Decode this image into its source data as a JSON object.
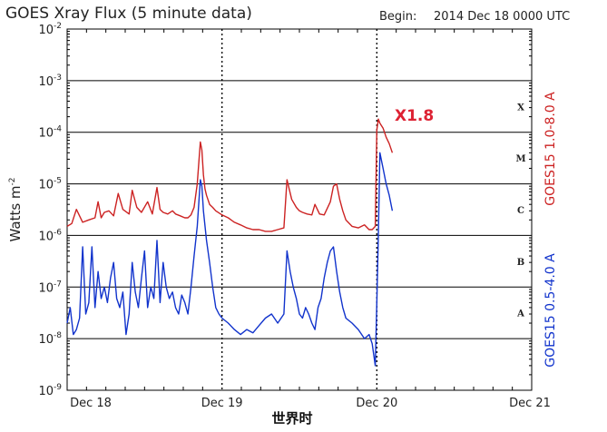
{
  "chart_data": {
    "type": "line",
    "title": "GOES Xray Flux (5 minute data)",
    "begin_label": "Begin:",
    "begin_value": "2014 Dec 18 0000 UTC",
    "ylabel": "Watts m",
    "ylabel_exp": "-2",
    "xlabel": "世界时",
    "y_scale": "log",
    "ylim": [
      1e-09,
      0.01
    ],
    "xlim": [
      0,
      3
    ],
    "y_ticks": [
      {
        "value": 0.01,
        "base": "10",
        "exp": "-2"
      },
      {
        "value": 0.001,
        "base": "10",
        "exp": "-3"
      },
      {
        "value": 0.0001,
        "base": "10",
        "exp": "-4"
      },
      {
        "value": 1e-05,
        "base": "10",
        "exp": "-5"
      },
      {
        "value": 1e-06,
        "base": "10",
        "exp": "-6"
      },
      {
        "value": 1e-07,
        "base": "10",
        "exp": "-7"
      },
      {
        "value": 1e-08,
        "base": "10",
        "exp": "-8"
      },
      {
        "value": 1e-09,
        "base": "10",
        "exp": "-9"
      }
    ],
    "x_ticks": [
      {
        "value": 0,
        "label": "Dec 18"
      },
      {
        "value": 1,
        "label": "Dec 19"
      },
      {
        "value": 2,
        "label": "Dec 20"
      },
      {
        "value": 3,
        "label": "Dec 21"
      }
    ],
    "flare_classes": [
      {
        "label": "X",
        "low": 0.0001,
        "high": 0.001
      },
      {
        "label": "M",
        "low": 1e-05,
        "high": 0.0001
      },
      {
        "label": "C",
        "low": 1e-06,
        "high": 1e-05
      },
      {
        "label": "B",
        "low": 1e-07,
        "high": 1e-06
      },
      {
        "label": "A",
        "low": 1e-08,
        "high": 1e-07
      }
    ],
    "grid": true,
    "colors": {
      "long": "#cc2222",
      "short": "#1133cc",
      "grid": "#000000",
      "annotation": "#dd2233"
    },
    "annotation": {
      "text": "X1.8",
      "x": 2.08,
      "y": 0.00018
    },
    "series": [
      {
        "name": "GOES15 1.0-8.0 A",
        "color": "#cc2222",
        "x": [
          0.0,
          0.03,
          0.06,
          0.1,
          0.14,
          0.18,
          0.2,
          0.22,
          0.24,
          0.27,
          0.3,
          0.33,
          0.36,
          0.4,
          0.42,
          0.45,
          0.48,
          0.52,
          0.55,
          0.58,
          0.6,
          0.62,
          0.65,
          0.68,
          0.7,
          0.73,
          0.76,
          0.78,
          0.8,
          0.82,
          0.84,
          0.86,
          0.87,
          0.88,
          0.89,
          0.9,
          0.92,
          0.94,
          0.96,
          1.0,
          1.04,
          1.08,
          1.12,
          1.16,
          1.2,
          1.24,
          1.28,
          1.32,
          1.36,
          1.4,
          1.42,
          1.45,
          1.48,
          1.5,
          1.52,
          1.55,
          1.58,
          1.6,
          1.63,
          1.66,
          1.7,
          1.72,
          1.74,
          1.76,
          1.78,
          1.8,
          1.84,
          1.88,
          1.92,
          1.95,
          1.97,
          1.99,
          2.0,
          2.01,
          2.02,
          2.04,
          2.06,
          2.08,
          2.1
        ],
        "y": [
          1.5e-06,
          1.7e-06,
          3.2e-06,
          1.8e-06,
          2e-06,
          2.2e-06,
          4.5e-06,
          2.2e-06,
          2.8e-06,
          3e-06,
          2.4e-06,
          6.5e-06,
          3.2e-06,
          2.6e-06,
          7.5e-06,
          3.5e-06,
          2.8e-06,
          4.5e-06,
          2.6e-06,
          8.5e-06,
          3.2e-06,
          2.8e-06,
          2.6e-06,
          3e-06,
          2.6e-06,
          2.4e-06,
          2.2e-06,
          2.2e-06,
          2.5e-06,
          3.5e-06,
          1e-05,
          6.5e-05,
          4.5e-05,
          1.5e-05,
          8e-06,
          6e-06,
          4e-06,
          3.5e-06,
          3e-06,
          2.5e-06,
          2.2e-06,
          1.8e-06,
          1.6e-06,
          1.4e-06,
          1.3e-06,
          1.3e-06,
          1.2e-06,
          1.2e-06,
          1.3e-06,
          1.4e-06,
          1.2e-05,
          5e-06,
          3.5e-06,
          3e-06,
          2.8e-06,
          2.6e-06,
          2.5e-06,
          4e-06,
          2.6e-06,
          2.5e-06,
          4.5e-06,
          9e-06,
          1e-05,
          5e-06,
          3e-06,
          2e-06,
          1.5e-06,
          1.4e-06,
          1.6e-06,
          1.3e-06,
          1.3e-06,
          1.5e-06,
          0.00011,
          0.00018,
          0.00015,
          0.00012,
          8e-05,
          6e-05,
          4e-05
        ]
      },
      {
        "name": "GOES15 0.5-4.0 A",
        "color": "#1133cc",
        "x": [
          0.0,
          0.02,
          0.04,
          0.06,
          0.08,
          0.1,
          0.12,
          0.14,
          0.16,
          0.18,
          0.2,
          0.22,
          0.24,
          0.26,
          0.28,
          0.3,
          0.32,
          0.34,
          0.36,
          0.38,
          0.4,
          0.42,
          0.44,
          0.46,
          0.48,
          0.5,
          0.52,
          0.54,
          0.56,
          0.58,
          0.6,
          0.62,
          0.64,
          0.66,
          0.68,
          0.7,
          0.72,
          0.74,
          0.76,
          0.78,
          0.8,
          0.82,
          0.84,
          0.86,
          0.87,
          0.88,
          0.9,
          0.92,
          0.94,
          0.96,
          0.98,
          1.0,
          1.04,
          1.08,
          1.12,
          1.16,
          1.2,
          1.24,
          1.28,
          1.32,
          1.36,
          1.4,
          1.42,
          1.44,
          1.46,
          1.48,
          1.5,
          1.52,
          1.54,
          1.56,
          1.58,
          1.6,
          1.62,
          1.64,
          1.66,
          1.68,
          1.7,
          1.72,
          1.74,
          1.76,
          1.78,
          1.8,
          1.84,
          1.88,
          1.92,
          1.95,
          1.97,
          1.99,
          2.0,
          2.01,
          2.02,
          2.04,
          2.06,
          2.08,
          2.1
        ],
        "y": [
          2e-08,
          4e-08,
          1.2e-08,
          1.5e-08,
          2.5e-08,
          6e-07,
          3e-08,
          5e-08,
          6e-07,
          4e-08,
          2e-07,
          6e-08,
          1e-07,
          5e-08,
          1.5e-07,
          3e-07,
          6e-08,
          4e-08,
          8e-08,
          1.2e-08,
          3e-08,
          3e-07,
          8e-08,
          4e-08,
          1.5e-07,
          5e-07,
          4e-08,
          1e-07,
          6e-08,
          8e-07,
          5e-08,
          3e-07,
          1e-07,
          6e-08,
          8e-08,
          4e-08,
          3e-08,
          7e-08,
          5e-08,
          3e-08,
          1e-07,
          4e-07,
          1.5e-06,
          1.2e-05,
          9e-06,
          3e-06,
          8e-07,
          3e-07,
          1e-07,
          4e-08,
          3e-08,
          2.5e-08,
          2e-08,
          1.5e-08,
          1.2e-08,
          1.5e-08,
          1.3e-08,
          1.8e-08,
          2.5e-08,
          3e-08,
          2e-08,
          3e-08,
          5e-07,
          2e-07,
          1e-07,
          6e-08,
          3e-08,
          2.5e-08,
          4e-08,
          3e-08,
          2e-08,
          1.5e-08,
          4e-08,
          6e-08,
          1.5e-07,
          3e-07,
          5e-07,
          6e-07,
          2e-07,
          8e-08,
          4e-08,
          2.5e-08,
          2e-08,
          1.5e-08,
          1e-08,
          1.2e-08,
          8e-09,
          3e-09,
          5e-08,
          1e-06,
          4e-05,
          2e-05,
          1e-05,
          6e-06,
          3e-06
        ]
      }
    ]
  }
}
